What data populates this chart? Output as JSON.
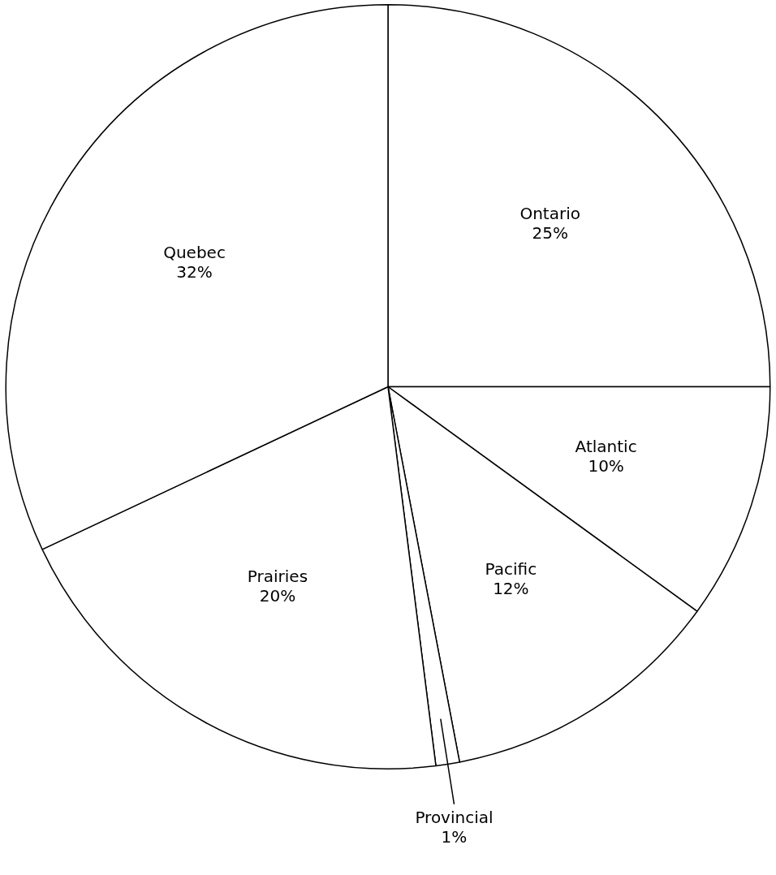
{
  "chart_data": {
    "type": "pie",
    "categories": [
      "Ontario",
      "Atlantic",
      "Pacific",
      "Provincial",
      "Prairies",
      "Quebec"
    ],
    "values": [
      25,
      10,
      12,
      1,
      20,
      32
    ],
    "value_labels": [
      "25%",
      "10%",
      "12%",
      "1%",
      "20%",
      "32%"
    ],
    "colors": [
      "#ffffff",
      "#ffffff",
      "#ffffff",
      "#ffffff",
      "#ffffff",
      "#ffffff"
    ]
  }
}
